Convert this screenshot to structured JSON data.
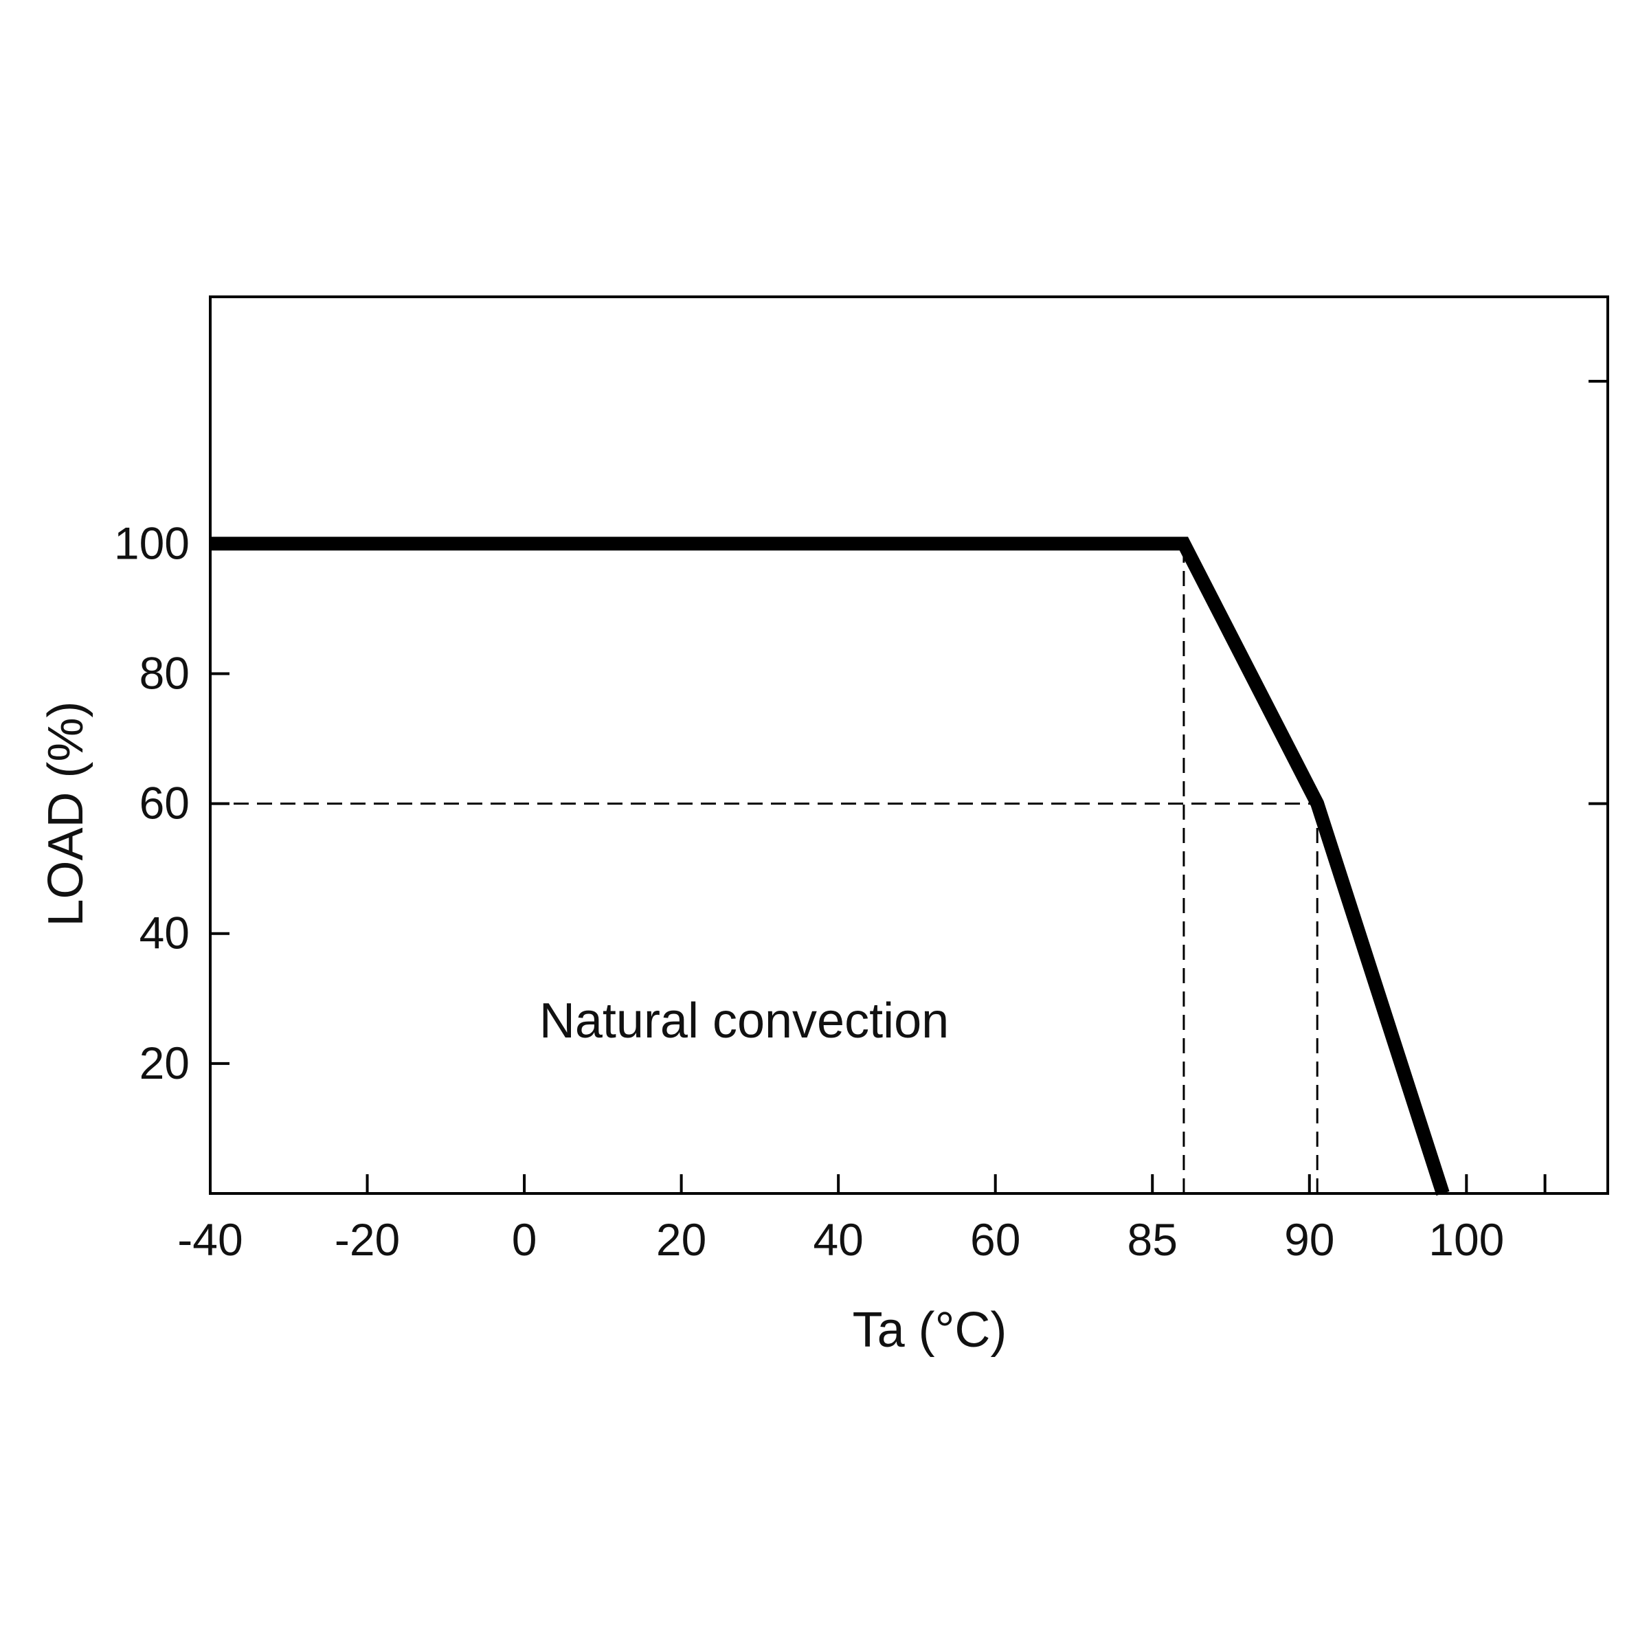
{
  "chart_data": {
    "type": "line",
    "xlabel": "Ta (°C)",
    "ylabel": "LOAD (%)",
    "x_ticks": [
      {
        "label": "-40",
        "slot": 0
      },
      {
        "label": "-20",
        "slot": 1
      },
      {
        "label": "0",
        "slot": 2
      },
      {
        "label": "20",
        "slot": 3
      },
      {
        "label": "40",
        "slot": 4
      },
      {
        "label": "60",
        "slot": 5
      },
      {
        "label": "85",
        "slot": 6
      },
      {
        "label": "90",
        "slot": 7
      },
      {
        "label": "100",
        "slot": 8
      }
    ],
    "x_extra_tick_slots": [
      8.5
    ],
    "x_slot_range": [
      0,
      8.9
    ],
    "y_ticks": [
      20,
      40,
      60,
      80,
      100
    ],
    "y_extra_ticks": [
      125
    ],
    "ylim": [
      0,
      138
    ],
    "series": [
      {
        "points": [
          {
            "x": -40,
            "slot": 0,
            "y": 100
          },
          {
            "x": 85,
            "slot": 6.2,
            "y": 100
          },
          {
            "x": 90,
            "slot": 7.05,
            "y": 60
          },
          {
            "x": 100,
            "slot": 7.85,
            "y": 0
          }
        ]
      }
    ],
    "reference_lines": [
      {
        "orientation": "horizontal",
        "y": 60,
        "from_slot": 0,
        "to_slot": 7.05
      },
      {
        "orientation": "vertical",
        "slot": 6.2,
        "from_y": 0,
        "to_y": 100
      },
      {
        "orientation": "vertical",
        "slot": 7.05,
        "from_y": 0,
        "to_y": 60
      }
    ],
    "annotations": [
      {
        "text": "Natural convection",
        "slot": 3.4,
        "y": 24
      }
    ],
    "grid": false,
    "line_color": "#000000"
  }
}
